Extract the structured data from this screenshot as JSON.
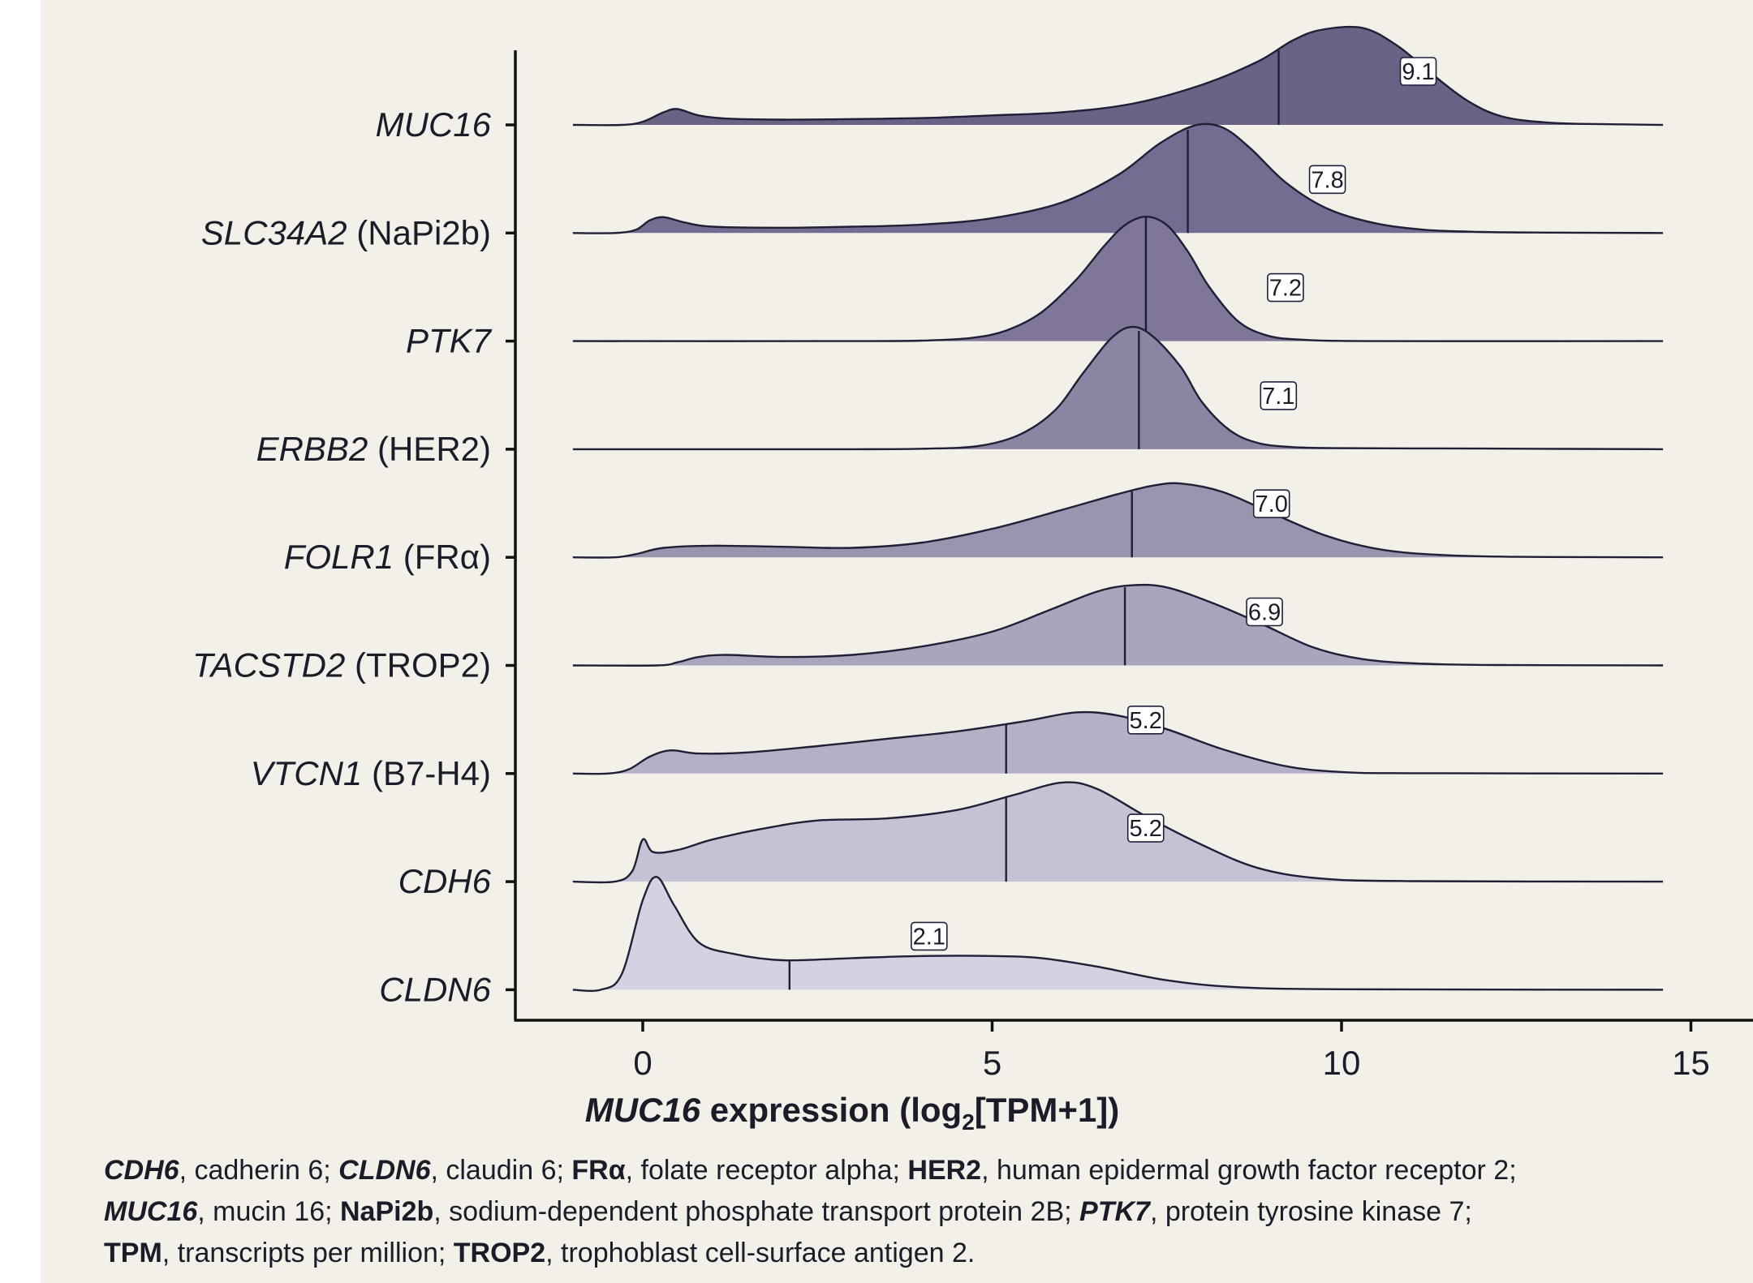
{
  "chart_data": {
    "type": "ridgeline",
    "xlabel_gene": "MUC16",
    "xlabel_rest": " expression (log",
    "xlabel_sub": "2",
    "xlabel_end": "[TPM+1])",
    "xlim": [
      -1.8,
      15
    ],
    "xticks": [
      0,
      5,
      10,
      15
    ],
    "series": [
      {
        "gene": "MUC16",
        "alias": "",
        "median": 9.1,
        "median_label": "9.1",
        "color": "#6b6386",
        "density": [
          [
            -1,
            0
          ],
          [
            -0.3,
            0
          ],
          [
            0,
            0.03
          ],
          [
            0.3,
            0.12
          ],
          [
            0.5,
            0.15
          ],
          [
            0.8,
            0.09
          ],
          [
            1.2,
            0.06
          ],
          [
            2,
            0.05
          ],
          [
            3,
            0.055
          ],
          [
            4,
            0.065
          ],
          [
            5,
            0.09
          ],
          [
            6,
            0.12
          ],
          [
            7,
            0.2
          ],
          [
            8,
            0.38
          ],
          [
            8.8,
            0.6
          ],
          [
            9.3,
            0.8
          ],
          [
            9.7,
            0.9
          ],
          [
            10.3,
            0.92
          ],
          [
            10.8,
            0.75
          ],
          [
            11.3,
            0.48
          ],
          [
            11.8,
            0.23
          ],
          [
            12.3,
            0.08
          ],
          [
            13,
            0.02
          ],
          [
            14,
            0.005
          ],
          [
            14.6,
            0
          ]
        ]
      },
      {
        "gene": "SLC34A2",
        "alias": "(NaPi2b)",
        "median": 7.8,
        "median_label": "7.8",
        "color": "#756d91",
        "density": [
          [
            -1,
            0
          ],
          [
            -0.4,
            0
          ],
          [
            -0.1,
            0.03
          ],
          [
            0.1,
            0.12
          ],
          [
            0.3,
            0.15
          ],
          [
            0.6,
            0.1
          ],
          [
            1,
            0.06
          ],
          [
            2,
            0.05
          ],
          [
            3,
            0.06
          ],
          [
            4,
            0.08
          ],
          [
            5,
            0.14
          ],
          [
            6,
            0.29
          ],
          [
            6.8,
            0.55
          ],
          [
            7.4,
            0.85
          ],
          [
            7.9,
            1.02
          ],
          [
            8.3,
            1.0
          ],
          [
            8.7,
            0.8
          ],
          [
            9.2,
            0.48
          ],
          [
            9.8,
            0.23
          ],
          [
            10.5,
            0.09
          ],
          [
            11.2,
            0.03
          ],
          [
            12,
            0.01
          ],
          [
            13,
            0.004
          ],
          [
            14.6,
            0
          ]
        ]
      },
      {
        "gene": "PTK7",
        "alias": "",
        "median": 7.2,
        "median_label": "7.2",
        "color": "#7f7698",
        "density": [
          [
            -1,
            0
          ],
          [
            3,
            0
          ],
          [
            4,
            0.005
          ],
          [
            4.7,
            0.03
          ],
          [
            5.2,
            0.1
          ],
          [
            5.7,
            0.27
          ],
          [
            6.2,
            0.58
          ],
          [
            6.6,
            0.9
          ],
          [
            6.9,
            1.1
          ],
          [
            7.2,
            1.18
          ],
          [
            7.5,
            1.1
          ],
          [
            7.8,
            0.85
          ],
          [
            8.1,
            0.52
          ],
          [
            8.5,
            0.2
          ],
          [
            8.9,
            0.06
          ],
          [
            9.4,
            0.015
          ],
          [
            10.5,
            0
          ],
          [
            14.6,
            0
          ]
        ]
      },
      {
        "gene": "ERBB2",
        "alias": "(HER2)",
        "median": 7.1,
        "median_label": "7.1",
        "color": "#8b84a2",
        "density": [
          [
            -1,
            0
          ],
          [
            3,
            0
          ],
          [
            4,
            0.005
          ],
          [
            4.8,
            0.03
          ],
          [
            5.4,
            0.14
          ],
          [
            5.9,
            0.37
          ],
          [
            6.3,
            0.72
          ],
          [
            6.7,
            1.05
          ],
          [
            7.0,
            1.16
          ],
          [
            7.3,
            1.07
          ],
          [
            7.7,
            0.78
          ],
          [
            8.0,
            0.45
          ],
          [
            8.4,
            0.18
          ],
          [
            8.8,
            0.06
          ],
          [
            9.3,
            0.02
          ],
          [
            10,
            0.01
          ],
          [
            11,
            0.008
          ],
          [
            12,
            0.006
          ],
          [
            14.6,
            0
          ]
        ]
      },
      {
        "gene": "FOLR1",
        "alias": "(FRα)",
        "median": 7.0,
        "median_label": "7.0",
        "color": "#9b94af",
        "density": [
          [
            -1,
            0
          ],
          [
            -0.4,
            0
          ],
          [
            -0.1,
            0.03
          ],
          [
            0.3,
            0.09
          ],
          [
            1,
            0.11
          ],
          [
            2,
            0.1
          ],
          [
            3,
            0.09
          ],
          [
            4,
            0.14
          ],
          [
            5,
            0.27
          ],
          [
            6,
            0.45
          ],
          [
            6.8,
            0.6
          ],
          [
            7.3,
            0.68
          ],
          [
            7.7,
            0.7
          ],
          [
            8.3,
            0.62
          ],
          [
            9,
            0.42
          ],
          [
            9.8,
            0.2
          ],
          [
            10.6,
            0.07
          ],
          [
            11.5,
            0.02
          ],
          [
            12.5,
            0.005
          ],
          [
            14.6,
            0
          ]
        ]
      },
      {
        "gene": "TACSTD2",
        "alias": "(TROP2)",
        "median": 6.9,
        "median_label": "6.9",
        "color": "#aaa4bd",
        "density": [
          [
            -1,
            0
          ],
          [
            0.2,
            0
          ],
          [
            0.5,
            0.03
          ],
          [
            0.8,
            0.08
          ],
          [
            1.2,
            0.1
          ],
          [
            2,
            0.08
          ],
          [
            3,
            0.1
          ],
          [
            4,
            0.18
          ],
          [
            5,
            0.32
          ],
          [
            5.8,
            0.52
          ],
          [
            6.5,
            0.7
          ],
          [
            7.0,
            0.76
          ],
          [
            7.5,
            0.74
          ],
          [
            8.2,
            0.58
          ],
          [
            8.9,
            0.38
          ],
          [
            9.6,
            0.17
          ],
          [
            10.3,
            0.06
          ],
          [
            11.2,
            0.015
          ],
          [
            12.5,
            0.003
          ],
          [
            14.6,
            0
          ]
        ]
      },
      {
        "gene": "VTCN1",
        "alias": "(B7-H4)",
        "median": 5.2,
        "median_label": "5.2",
        "color": "#b6b0c7",
        "density": [
          [
            -1,
            0
          ],
          [
            -0.5,
            0
          ],
          [
            -0.2,
            0.04
          ],
          [
            0.1,
            0.16
          ],
          [
            0.4,
            0.22
          ],
          [
            0.8,
            0.19
          ],
          [
            1.5,
            0.2
          ],
          [
            2.5,
            0.26
          ],
          [
            3.5,
            0.33
          ],
          [
            4.5,
            0.4
          ],
          [
            5.5,
            0.5
          ],
          [
            6.2,
            0.58
          ],
          [
            6.8,
            0.55
          ],
          [
            7.5,
            0.42
          ],
          [
            8.3,
            0.23
          ],
          [
            9.2,
            0.07
          ],
          [
            10,
            0.015
          ],
          [
            11,
            0.003
          ],
          [
            14.6,
            0
          ]
        ]
      },
      {
        "gene": "CDH6",
        "alias": "",
        "median": 5.2,
        "median_label": "5.2",
        "color": "#c6c1d4",
        "density": [
          [
            -1,
            0
          ],
          [
            -0.4,
            0
          ],
          [
            -0.15,
            0.1
          ],
          [
            0,
            0.4
          ],
          [
            0.15,
            0.28
          ],
          [
            0.5,
            0.3
          ],
          [
            1,
            0.4
          ],
          [
            1.7,
            0.5
          ],
          [
            2.5,
            0.58
          ],
          [
            3.5,
            0.6
          ],
          [
            4.5,
            0.68
          ],
          [
            5.3,
            0.82
          ],
          [
            6,
            0.94
          ],
          [
            6.5,
            0.88
          ],
          [
            7.2,
            0.62
          ],
          [
            8,
            0.35
          ],
          [
            8.8,
            0.13
          ],
          [
            9.7,
            0.03
          ],
          [
            11,
            0.005
          ],
          [
            14.6,
            0
          ]
        ]
      },
      {
        "gene": "CLDN6",
        "alias": "",
        "median": 2.1,
        "median_label": "2.1",
        "color": "#d5d1e0",
        "density": [
          [
            -1,
            0
          ],
          [
            -0.6,
            0
          ],
          [
            -0.3,
            0.15
          ],
          [
            0,
            0.85
          ],
          [
            0.2,
            1.07
          ],
          [
            0.45,
            0.8
          ],
          [
            0.8,
            0.45
          ],
          [
            1.3,
            0.34
          ],
          [
            2,
            0.28
          ],
          [
            3,
            0.3
          ],
          [
            4,
            0.32
          ],
          [
            5,
            0.32
          ],
          [
            5.7,
            0.3
          ],
          [
            6.5,
            0.22
          ],
          [
            7.5,
            0.09
          ],
          [
            8.5,
            0.025
          ],
          [
            10,
            0.005
          ],
          [
            14.6,
            0
          ]
        ]
      }
    ]
  },
  "footnote": {
    "e1_term": "CDH6",
    "e1_def": ", cadherin 6; ",
    "e2_term": "CLDN6",
    "e2_def": ", claudin 6; ",
    "e3_term": "FRα",
    "e3_def": ", folate receptor alpha; ",
    "e4_term": "HER2",
    "e4_def": ", human epidermal growth factor receptor 2;",
    "e5_term": "MUC16",
    "e5_def": ", mucin 16; ",
    "e6_term": "NaPi2b",
    "e6_def": ", sodium-dependent phosphate transport protein 2B; ",
    "e7_term": "PTK7",
    "e7_def": ", protein tyrosine kinase 7;",
    "e8_term": "TPM",
    "e8_def": ", transcripts per million; ",
    "e9_term": "TROP2",
    "e9_def": ", trophoblast cell-surface antigen 2."
  }
}
